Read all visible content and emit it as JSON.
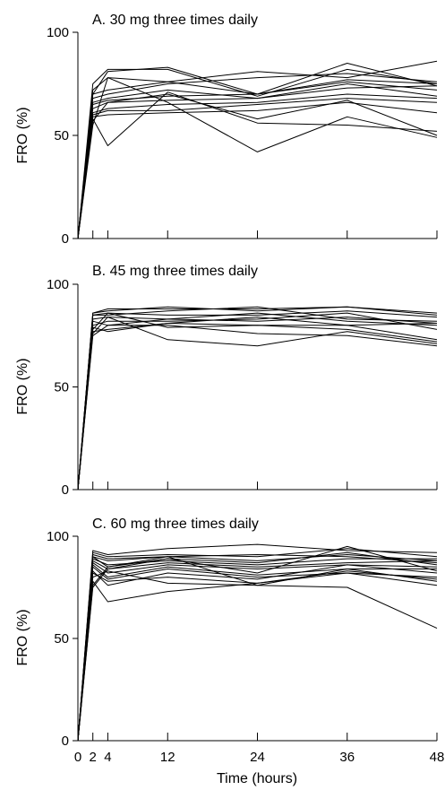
{
  "figure": {
    "xlabel": "Time (hours)"
  },
  "chart_data": [
    {
      "type": "line",
      "title": "A. 30 mg three times daily",
      "ylabel": "FRO (%)",
      "xlabel": "",
      "ylim": [
        0,
        100
      ],
      "yticks": [
        0,
        50,
        100
      ],
      "xlim": [
        0,
        48
      ],
      "xticks": [
        0,
        2,
        4,
        12,
        24,
        36,
        48
      ],
      "x": [
        0,
        2,
        4,
        12,
        24,
        36,
        48
      ],
      "series": [
        {
          "values": [
            0,
            75,
            82,
            82,
            69,
            82,
            75
          ]
        },
        {
          "values": [
            0,
            70,
            81,
            83,
            70,
            85,
            74
          ]
        },
        {
          "values": [
            0,
            72,
            78,
            76,
            70,
            76,
            72
          ]
        },
        {
          "values": [
            0,
            70,
            72,
            76,
            81,
            78,
            86
          ]
        },
        {
          "values": [
            0,
            68,
            70,
            75,
            78,
            80,
            76
          ]
        },
        {
          "values": [
            0,
            66,
            68,
            72,
            68,
            75,
            69
          ]
        },
        {
          "values": [
            0,
            65,
            67,
            69,
            70,
            77,
            75
          ]
        },
        {
          "values": [
            0,
            63,
            66,
            67,
            68,
            73,
            74
          ]
        },
        {
          "values": [
            0,
            61,
            63,
            65,
            66,
            70,
            68
          ]
        },
        {
          "values": [
            0,
            60,
            62,
            62,
            65,
            68,
            66
          ]
        },
        {
          "values": [
            0,
            59,
            60,
            61,
            62,
            66,
            61
          ]
        },
        {
          "values": [
            0,
            58,
            45,
            71,
            56,
            55,
            52
          ]
        },
        {
          "values": [
            0,
            57,
            66,
            70,
            58,
            67,
            50
          ]
        },
        {
          "values": [
            0,
            55,
            78,
            66,
            42,
            59,
            49
          ]
        }
      ]
    },
    {
      "type": "line",
      "title": "B. 45 mg three times daily",
      "ylabel": "FRO (%)",
      "xlabel": "",
      "ylim": [
        0,
        100
      ],
      "yticks": [
        0,
        50,
        100
      ],
      "xlim": [
        0,
        48
      ],
      "xticks": [
        0,
        2,
        4,
        12,
        24,
        36,
        48
      ],
      "x": [
        0,
        2,
        4,
        12,
        24,
        36,
        48
      ],
      "series": [
        {
          "values": [
            0,
            86,
            88,
            88,
            88,
            89,
            85
          ]
        },
        {
          "values": [
            0,
            86,
            87,
            89,
            87,
            89,
            86
          ]
        },
        {
          "values": [
            0,
            85,
            86,
            85,
            85,
            87,
            84
          ]
        },
        {
          "values": [
            0,
            85,
            85,
            87,
            89,
            83,
            82
          ]
        },
        {
          "values": [
            0,
            83,
            84,
            83,
            82,
            84,
            81
          ]
        },
        {
          "values": [
            0,
            82,
            80,
            83,
            86,
            82,
            80
          ]
        },
        {
          "values": [
            0,
            80,
            82,
            82,
            83,
            86,
            78
          ]
        },
        {
          "values": [
            0,
            79,
            77,
            81,
            84,
            80,
            73
          ]
        },
        {
          "values": [
            0,
            78,
            86,
            79,
            80,
            78,
            72
          ]
        },
        {
          "values": [
            0,
            77,
            78,
            81,
            80,
            80,
            81
          ]
        },
        {
          "values": [
            0,
            76,
            84,
            73,
            70,
            77,
            71
          ]
        },
        {
          "values": [
            0,
            75,
            80,
            80,
            76,
            75,
            70
          ]
        }
      ]
    },
    {
      "type": "line",
      "title": "C. 60 mg three times daily",
      "ylabel": "FRO (%)",
      "xlabel": "Time (hours)",
      "ylim": [
        0,
        100
      ],
      "yticks": [
        0,
        50,
        100
      ],
      "xlim": [
        0,
        48
      ],
      "xticks": [
        0,
        2,
        4,
        12,
        24,
        36,
        48
      ],
      "x": [
        0,
        2,
        4,
        12,
        24,
        36,
        48
      ],
      "series": [
        {
          "values": [
            0,
            93,
            91,
            94,
            96,
            93,
            92
          ]
        },
        {
          "values": [
            0,
            92,
            90,
            91,
            90,
            94,
            90
          ]
        },
        {
          "values": [
            0,
            91,
            89,
            90,
            88,
            91,
            88
          ]
        },
        {
          "values": [
            0,
            90,
            88,
            90,
            91,
            90,
            87
          ]
        },
        {
          "values": [
            0,
            90,
            85,
            89,
            87,
            92,
            86
          ]
        },
        {
          "values": [
            0,
            89,
            86,
            88,
            86,
            89,
            89
          ]
        },
        {
          "values": [
            0,
            88,
            84,
            87,
            85,
            87,
            88
          ]
        },
        {
          "values": [
            0,
            87,
            82,
            86,
            84,
            86,
            85
          ]
        },
        {
          "values": [
            0,
            86,
            80,
            85,
            81,
            84,
            84
          ]
        },
        {
          "values": [
            0,
            85,
            79,
            84,
            80,
            82,
            80
          ]
        },
        {
          "values": [
            0,
            83,
            76,
            82,
            79,
            86,
            82
          ]
        },
        {
          "values": [
            0,
            82,
            78,
            80,
            77,
            83,
            79
          ]
        },
        {
          "values": [
            0,
            80,
            83,
            77,
            76,
            84,
            78
          ]
        },
        {
          "values": [
            0,
            78,
            68,
            73,
            77,
            82,
            76
          ]
        },
        {
          "values": [
            0,
            76,
            85,
            90,
            76,
            75,
            55
          ]
        },
        {
          "values": [
            0,
            75,
            84,
            89,
            82,
            95,
            83
          ]
        }
      ]
    }
  ]
}
